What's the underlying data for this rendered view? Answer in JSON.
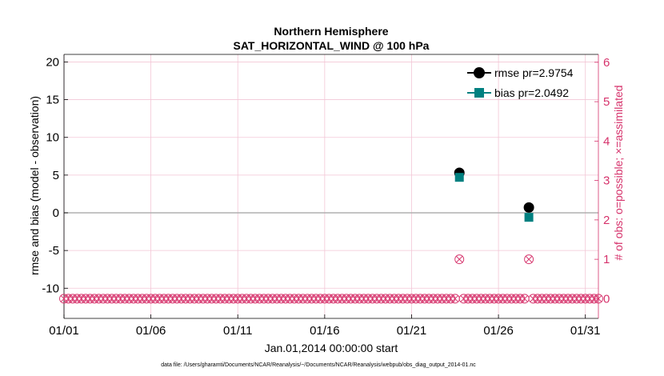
{
  "chart_data": {
    "type": "scatter",
    "title": "Northern Hemisphere",
    "subtitle": "SAT_HORIZONTAL_WIND @ 100 hPa",
    "xlabel": "Jan.01,2014 00:00:00 start",
    "ylabel_left": "rmse and bias (model - observation)",
    "ylabel_right": "# of obs: o=possible; ×=assimilated",
    "footnote": "data file: /Users/gharamti/Documents/NCAR/Reanalysis/~/Documents/NCAR/Reanalysis/webpub/obs_diag_output_2014-01.nc",
    "xlim": [
      "2014-01-01",
      "2014-01-31 18:00"
    ],
    "ylim_left": [
      -14,
      21
    ],
    "ylim_right": [
      -0.5,
      6.2
    ],
    "x_ticks": [
      "01/01",
      "01/06",
      "01/11",
      "01/16",
      "01/21",
      "01/26",
      "01/31"
    ],
    "y_ticks_left": [
      "20",
      "15",
      "10",
      "5",
      "0",
      "-5",
      "-10"
    ],
    "y_ticks_right": [
      "6",
      "5",
      "4",
      "3",
      "2",
      "1",
      "0"
    ],
    "grid": true,
    "legend_position": "top-right",
    "colors": {
      "rmse": "#000000",
      "bias": "#008080",
      "obs_count": "#d6336c",
      "zero_line": "#b0b0b0",
      "grid": "#f3c6d6"
    },
    "series": [
      {
        "name": "rmse pr=2.9754",
        "marker": "circle",
        "axis": "left",
        "points": [
          {
            "x": "2014-01-23 18:00",
            "y": 5.3
          },
          {
            "x": "2014-01-27 18:00",
            "y": 0.7
          }
        ]
      },
      {
        "name": "bias pr=2.0492",
        "marker": "square",
        "axis": "left",
        "points": [
          {
            "x": "2014-01-23 18:00",
            "y": 4.7
          },
          {
            "x": "2014-01-27 18:00",
            "y": -0.6
          }
        ]
      }
    ],
    "obs_count": {
      "axis": "right",
      "start": "2014-01-01 00:00",
      "end": "2014-01-31 18:00",
      "step_hours": 6,
      "default_count": 0,
      "nonzero": [
        {
          "x": "2014-01-23 18:00",
          "count": 1
        },
        {
          "x": "2014-01-27 18:00",
          "count": 1
        }
      ]
    }
  }
}
